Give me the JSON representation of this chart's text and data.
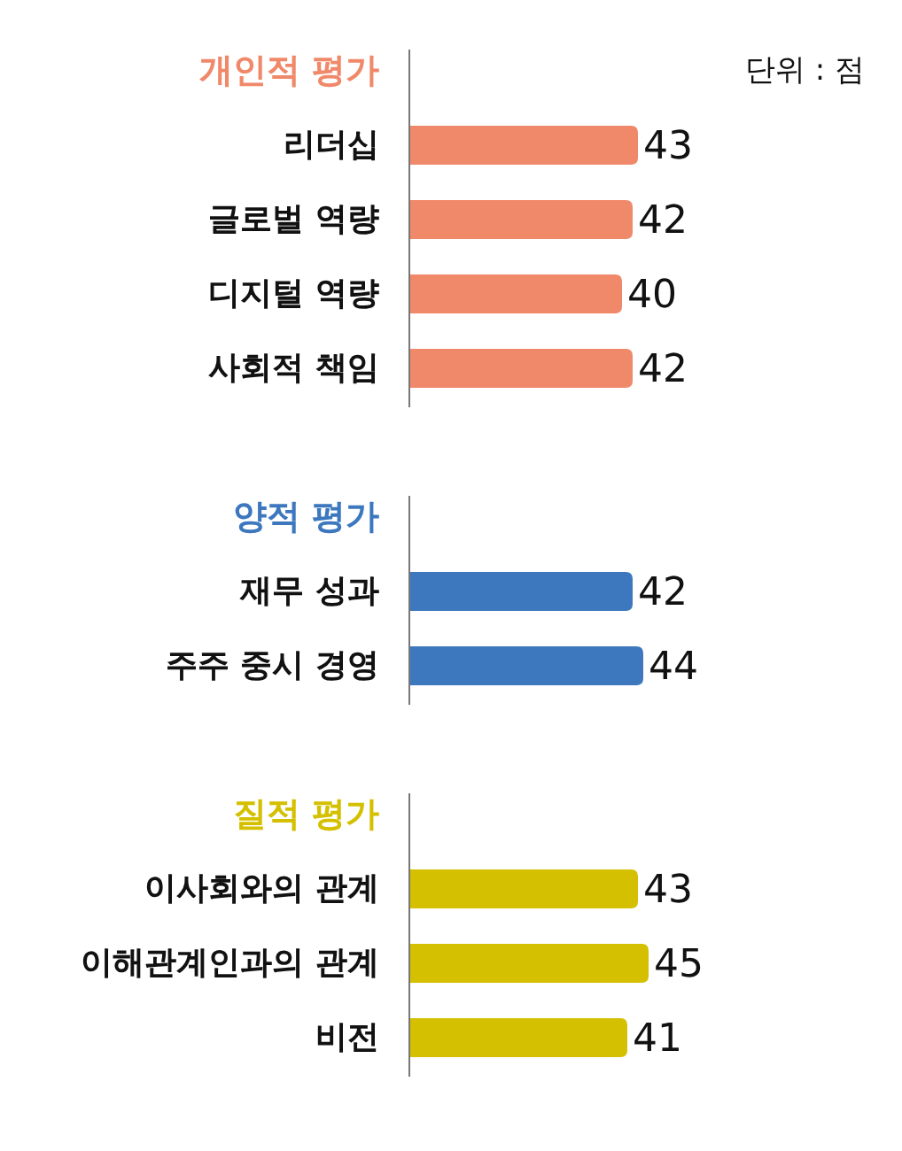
{
  "chart_data": [
    {
      "type": "bar",
      "orientation": "horizontal",
      "title": "개인적 평가",
      "categories": [
        "리더십",
        "글로벌 역량",
        "디지털 역량",
        "사회적 책임"
      ],
      "series": [
        {
          "color": "#f0896a",
          "values": [
            43,
            42,
            40,
            42
          ]
        }
      ],
      "data_labels": true,
      "annotations": [
        "단위 : 점"
      ]
    },
    {
      "type": "bar",
      "orientation": "horizontal",
      "title": "양적 평가",
      "categories": [
        "재무 성과",
        "주주 중시 경영"
      ],
      "series": [
        {
          "color": "#3d78bf",
          "values": [
            42,
            44
          ]
        }
      ],
      "data_labels": true
    },
    {
      "type": "bar",
      "orientation": "horizontal",
      "title": "질적 평가",
      "categories": [
        "이사회와의 관계",
        "이해관계인과의 관계",
        "비전"
      ],
      "series": [
        {
          "color": "#d4c000",
          "values": [
            43,
            45,
            41
          ]
        }
      ],
      "data_labels": true
    }
  ]
}
